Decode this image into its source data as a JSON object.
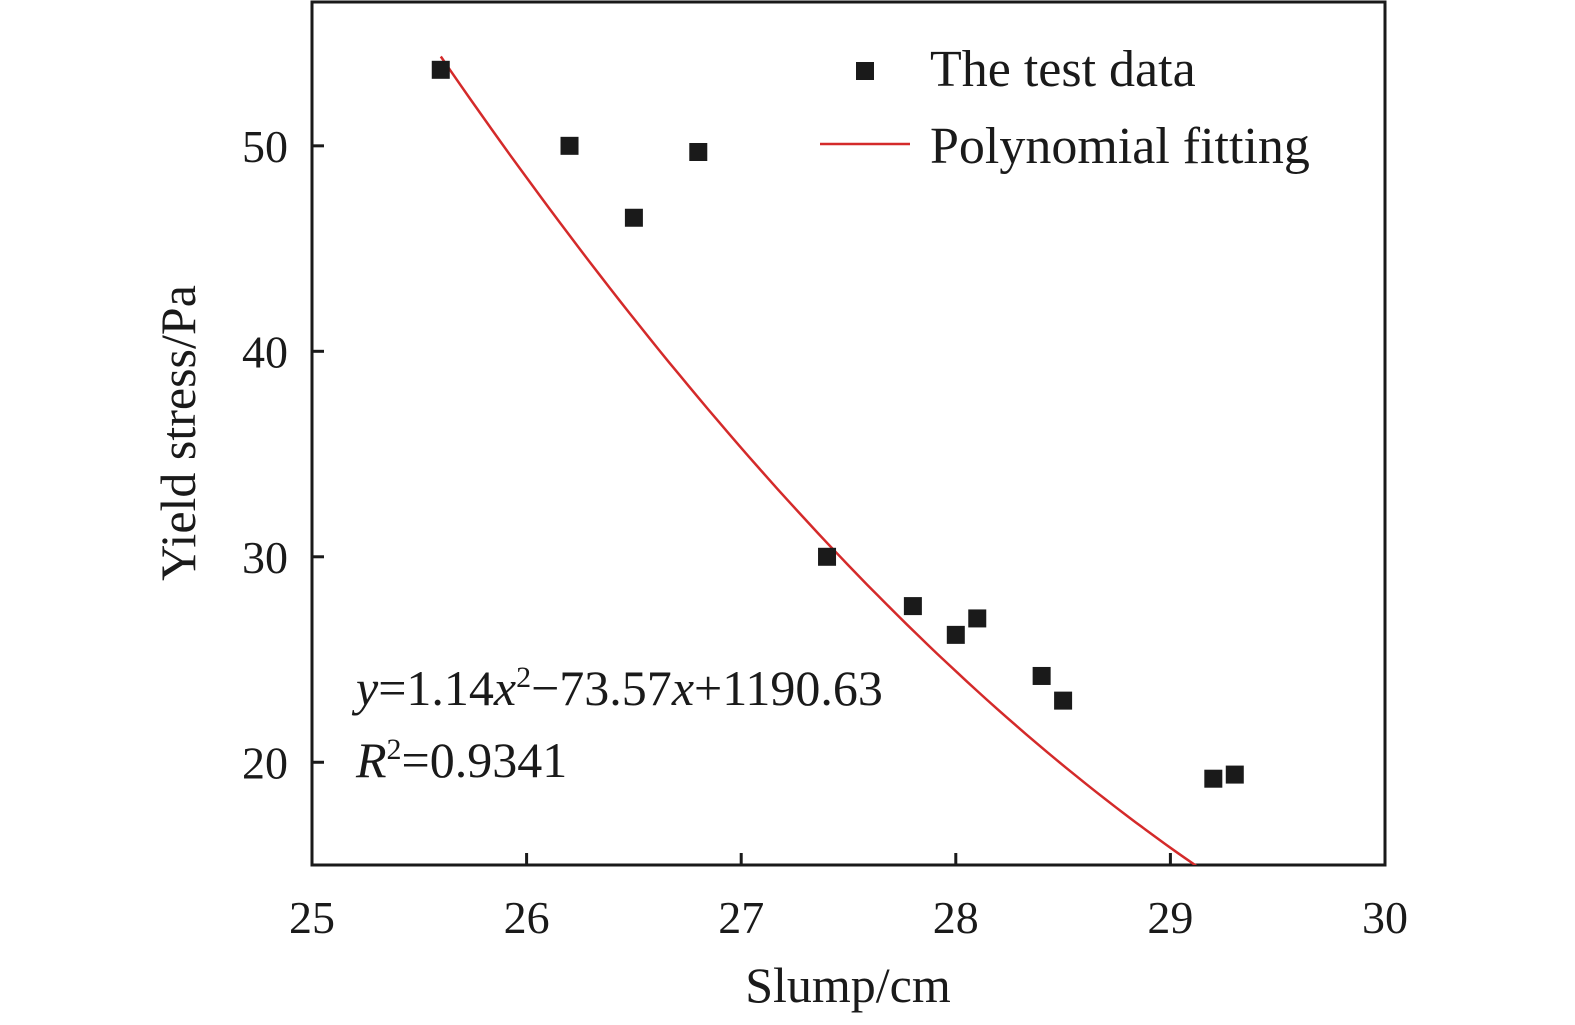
{
  "chart_data": {
    "type": "scatter",
    "title": "",
    "xlabel": "Slump/cm",
    "ylabel": "Yield stress/Pa",
    "xlim": [
      25,
      30
    ],
    "ylim": [
      15,
      57
    ],
    "xticks": [
      25,
      26,
      27,
      28,
      29,
      30
    ],
    "yticks": [
      20,
      30,
      40,
      50
    ],
    "x_tick_labels": [
      "25",
      "26",
      "27",
      "28",
      "29",
      "30"
    ],
    "y_tick_labels": [
      "20",
      "30",
      "40",
      "50"
    ],
    "grid": false,
    "legend_position": "top-right",
    "series": [
      {
        "name": "The test data",
        "kind": "scatter",
        "marker": "square",
        "color": "#1a1a1a",
        "x": [
          25.6,
          26.2,
          26.5,
          26.8,
          27.4,
          27.8,
          28.0,
          28.1,
          28.4,
          28.5,
          29.2,
          29.3
        ],
        "y": [
          53.7,
          50.0,
          46.5,
          49.7,
          30.0,
          27.6,
          26.2,
          27.0,
          24.2,
          23.0,
          19.2,
          19.4
        ]
      },
      {
        "name": "Polynomial fitting",
        "kind": "line",
        "color": "#d42a2a",
        "x_range": [
          25.6,
          29.3
        ],
        "coefficients": {
          "a": 1.14,
          "b": -73.57,
          "c": 1190.63
        }
      }
    ],
    "annotations": {
      "equation": {
        "y": "y",
        "eq_part1": "=1.14",
        "x1": "x",
        "exp": "2",
        "eq_part2": "−73.57",
        "x2": "x",
        "eq_part3": "+1190.63"
      },
      "r2": {
        "r": "R",
        "exp": "2",
        "value": "=0.9341"
      }
    }
  }
}
